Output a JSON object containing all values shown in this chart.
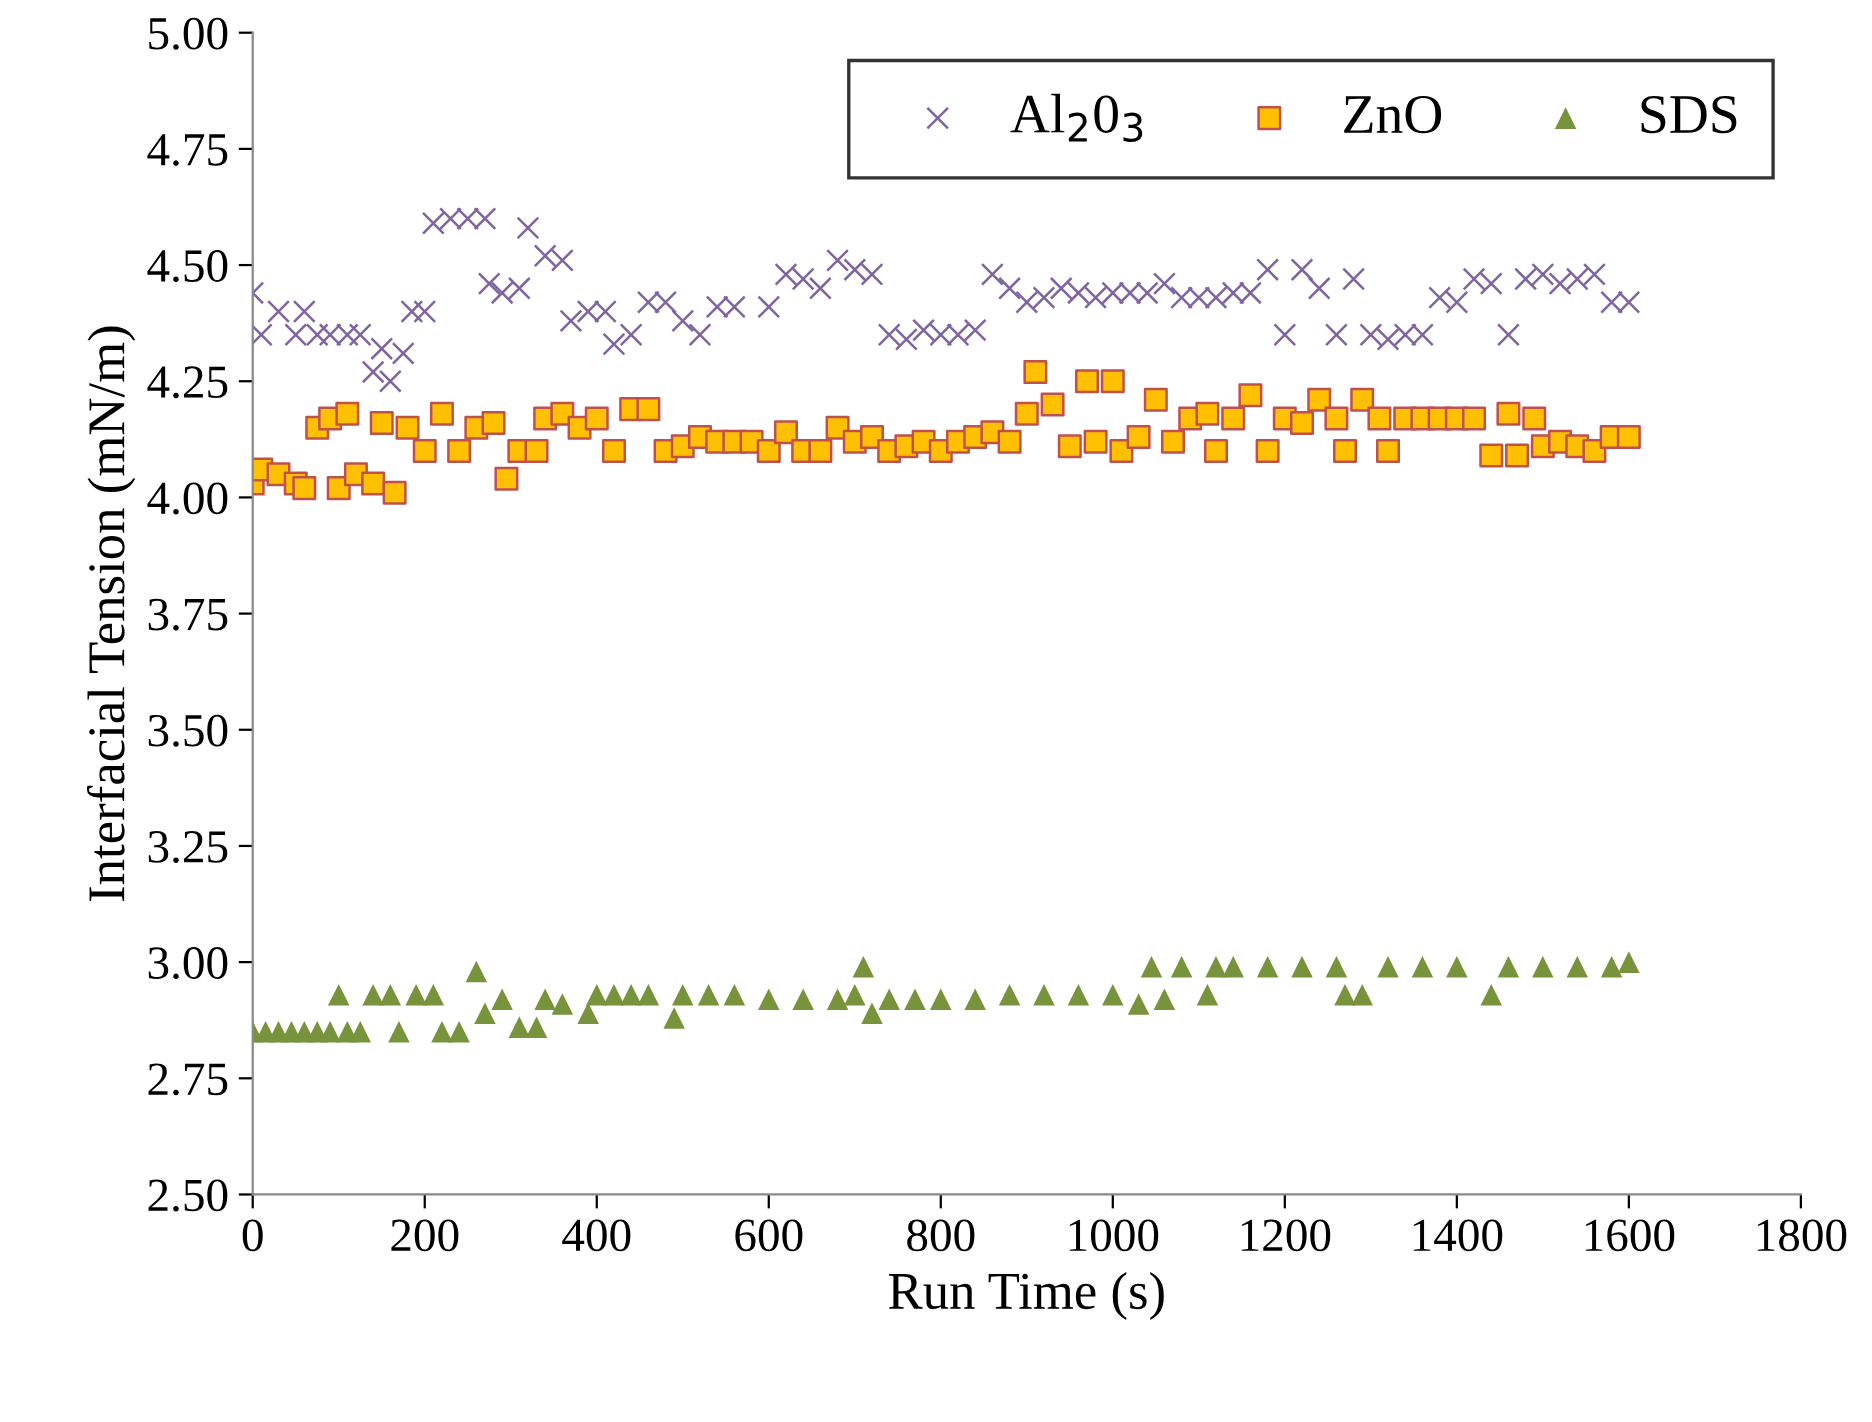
{
  "chart_data": {
    "type": "scatter",
    "xlabel": "Run Time (s)",
    "ylabel": "Interfacial Tension (mN/m)",
    "xlim": [
      0,
      1800
    ],
    "xticks": [
      0,
      200,
      400,
      600,
      800,
      1000,
      1200,
      1400,
      1600,
      1800
    ],
    "ylim": [
      2.5,
      5.0
    ],
    "yticks": [
      {
        "value": 2.5,
        "label": "2.50"
      },
      {
        "value": 2.75,
        "label": "2.75"
      },
      {
        "value": 3.0,
        "label": "3.00"
      },
      {
        "value": 3.25,
        "label": "3.25"
      },
      {
        "value": 3.5,
        "label": "3.50"
      },
      {
        "value": 3.75,
        "label": "3.75"
      },
      {
        "value": 4.0,
        "label": "4.00"
      },
      {
        "value": 4.25,
        "label": "4.25"
      },
      {
        "value": 4.5,
        "label": "4.50"
      },
      {
        "value": 4.75,
        "label": "4.75"
      },
      {
        "value": 5.0,
        "label": "5.00"
      }
    ],
    "grid": false,
    "legend": "top right",
    "series": [
      {
        "name": "Al$_{2}$0$_{3}$",
        "color": "#8064a2",
        "marker": "cross",
        "x": [
          0,
          10,
          30,
          50,
          60,
          75,
          90,
          110,
          125,
          140,
          150,
          160,
          175,
          185,
          200,
          210,
          230,
          250,
          270,
          275,
          290,
          310,
          320,
          340,
          360,
          370,
          390,
          410,
          420,
          440,
          460,
          480,
          500,
          520,
          540,
          560,
          600,
          620,
          640,
          660,
          680,
          700,
          720,
          740,
          760,
          780,
          800,
          820,
          840,
          860,
          880,
          900,
          920,
          940,
          960,
          980,
          1000,
          1020,
          1040,
          1060,
          1080,
          1100,
          1120,
          1140,
          1160,
          1180,
          1200,
          1220,
          1240,
          1260,
          1280,
          1300,
          1320,
          1340,
          1360,
          1380,
          1400,
          1420,
          1440,
          1460,
          1480,
          1500,
          1520,
          1540,
          1560,
          1580,
          1600
        ],
        "values": [
          4.44,
          4.35,
          4.4,
          4.35,
          4.4,
          4.35,
          4.35,
          4.35,
          4.35,
          4.27,
          4.32,
          4.25,
          4.31,
          4.4,
          4.4,
          4.59,
          4.6,
          4.6,
          4.6,
          4.46,
          4.44,
          4.45,
          4.58,
          4.52,
          4.51,
          4.38,
          4.4,
          4.4,
          4.33,
          4.35,
          4.42,
          4.42,
          4.38,
          4.35,
          4.41,
          4.41,
          4.41,
          4.48,
          4.47,
          4.45,
          4.51,
          4.49,
          4.48,
          4.35,
          4.34,
          4.36,
          4.35,
          4.35,
          4.36,
          4.48,
          4.45,
          4.42,
          4.43,
          4.45,
          4.44,
          4.43,
          4.44,
          4.44,
          4.44,
          4.46,
          4.43,
          4.43,
          4.43,
          4.44,
          4.44,
          4.49,
          4.35,
          4.49,
          4.45,
          4.35,
          4.47,
          4.35,
          4.34,
          4.35,
          4.35,
          4.43,
          4.42,
          4.47,
          4.46,
          4.35,
          4.47,
          4.48,
          4.46,
          4.47,
          4.48,
          4.42,
          4.42
        ]
      },
      {
        "name": "ZnO",
        "color": "#ffc000",
        "marker": "square",
        "x": [
          0,
          10,
          30,
          50,
          60,
          75,
          90,
          100,
          110,
          120,
          140,
          150,
          165,
          180,
          200,
          220,
          240,
          260,
          280,
          295,
          310,
          330,
          340,
          360,
          380,
          400,
          420,
          440,
          460,
          480,
          500,
          520,
          540,
          560,
          580,
          600,
          620,
          640,
          660,
          680,
          700,
          720,
          740,
          760,
          780,
          800,
          820,
          840,
          860,
          880,
          900,
          910,
          930,
          950,
          970,
          980,
          1000,
          1010,
          1030,
          1050,
          1070,
          1090,
          1110,
          1120,
          1140,
          1160,
          1180,
          1200,
          1220,
          1240,
          1260,
          1270,
          1290,
          1310,
          1320,
          1340,
          1360,
          1380,
          1400,
          1420,
          1440,
          1460,
          1470,
          1490,
          1500,
          1520,
          1540,
          1560,
          1580,
          1600
        ],
        "values": [
          4.03,
          4.06,
          4.05,
          4.03,
          4.02,
          4.15,
          4.17,
          4.02,
          4.18,
          4.05,
          4.03,
          4.16,
          4.01,
          4.15,
          4.1,
          4.18,
          4.1,
          4.15,
          4.16,
          4.04,
          4.1,
          4.1,
          4.17,
          4.18,
          4.15,
          4.17,
          4.1,
          4.19,
          4.19,
          4.1,
          4.11,
          4.13,
          4.12,
          4.12,
          4.12,
          4.1,
          4.14,
          4.1,
          4.1,
          4.15,
          4.12,
          4.13,
          4.1,
          4.11,
          4.12,
          4.1,
          4.12,
          4.13,
          4.14,
          4.12,
          4.18,
          4.27,
          4.2,
          4.11,
          4.25,
          4.12,
          4.25,
          4.1,
          4.13,
          4.21,
          4.12,
          4.17,
          4.18,
          4.1,
          4.17,
          4.22,
          4.1,
          4.17,
          4.16,
          4.21,
          4.17,
          4.1,
          4.21,
          4.17,
          4.1,
          4.17,
          4.17,
          4.17,
          4.17,
          4.17,
          4.09,
          4.18,
          4.09,
          4.17,
          4.11,
          4.12,
          4.11,
          4.1,
          4.13,
          4.13
        ]
      },
      {
        "name": "SDS",
        "color": "#77933c",
        "marker": "triangle",
        "x": [
          0,
          15,
          30,
          45,
          60,
          75,
          90,
          100,
          110,
          125,
          140,
          160,
          170,
          190,
          210,
          220,
          240,
          260,
          270,
          290,
          310,
          330,
          340,
          360,
          390,
          400,
          420,
          440,
          460,
          490,
          500,
          530,
          560,
          600,
          640,
          680,
          700,
          710,
          720,
          740,
          770,
          800,
          840,
          880,
          920,
          960,
          1000,
          1030,
          1045,
          1060,
          1080,
          1110,
          1120,
          1140,
          1180,
          1220,
          1260,
          1270,
          1290,
          1320,
          1360,
          1400,
          1440,
          1460,
          1500,
          1540,
          1580,
          1600
        ],
        "values": [
          2.85,
          2.85,
          2.85,
          2.85,
          2.85,
          2.85,
          2.85,
          2.93,
          2.85,
          2.85,
          2.93,
          2.93,
          2.85,
          2.93,
          2.93,
          2.85,
          2.85,
          2.98,
          2.89,
          2.92,
          2.86,
          2.86,
          2.92,
          2.91,
          2.89,
          2.93,
          2.93,
          2.93,
          2.93,
          2.88,
          2.93,
          2.93,
          2.93,
          2.92,
          2.92,
          2.92,
          2.93,
          2.99,
          2.89,
          2.92,
          2.92,
          2.92,
          2.92,
          2.93,
          2.93,
          2.93,
          2.93,
          2.91,
          2.99,
          2.92,
          2.99,
          2.93,
          2.99,
          2.99,
          2.99,
          2.99,
          2.99,
          2.93,
          2.93,
          2.99,
          2.99,
          2.99,
          2.93,
          2.99,
          2.99,
          2.99,
          2.99,
          3.0
        ]
      }
    ]
  }
}
